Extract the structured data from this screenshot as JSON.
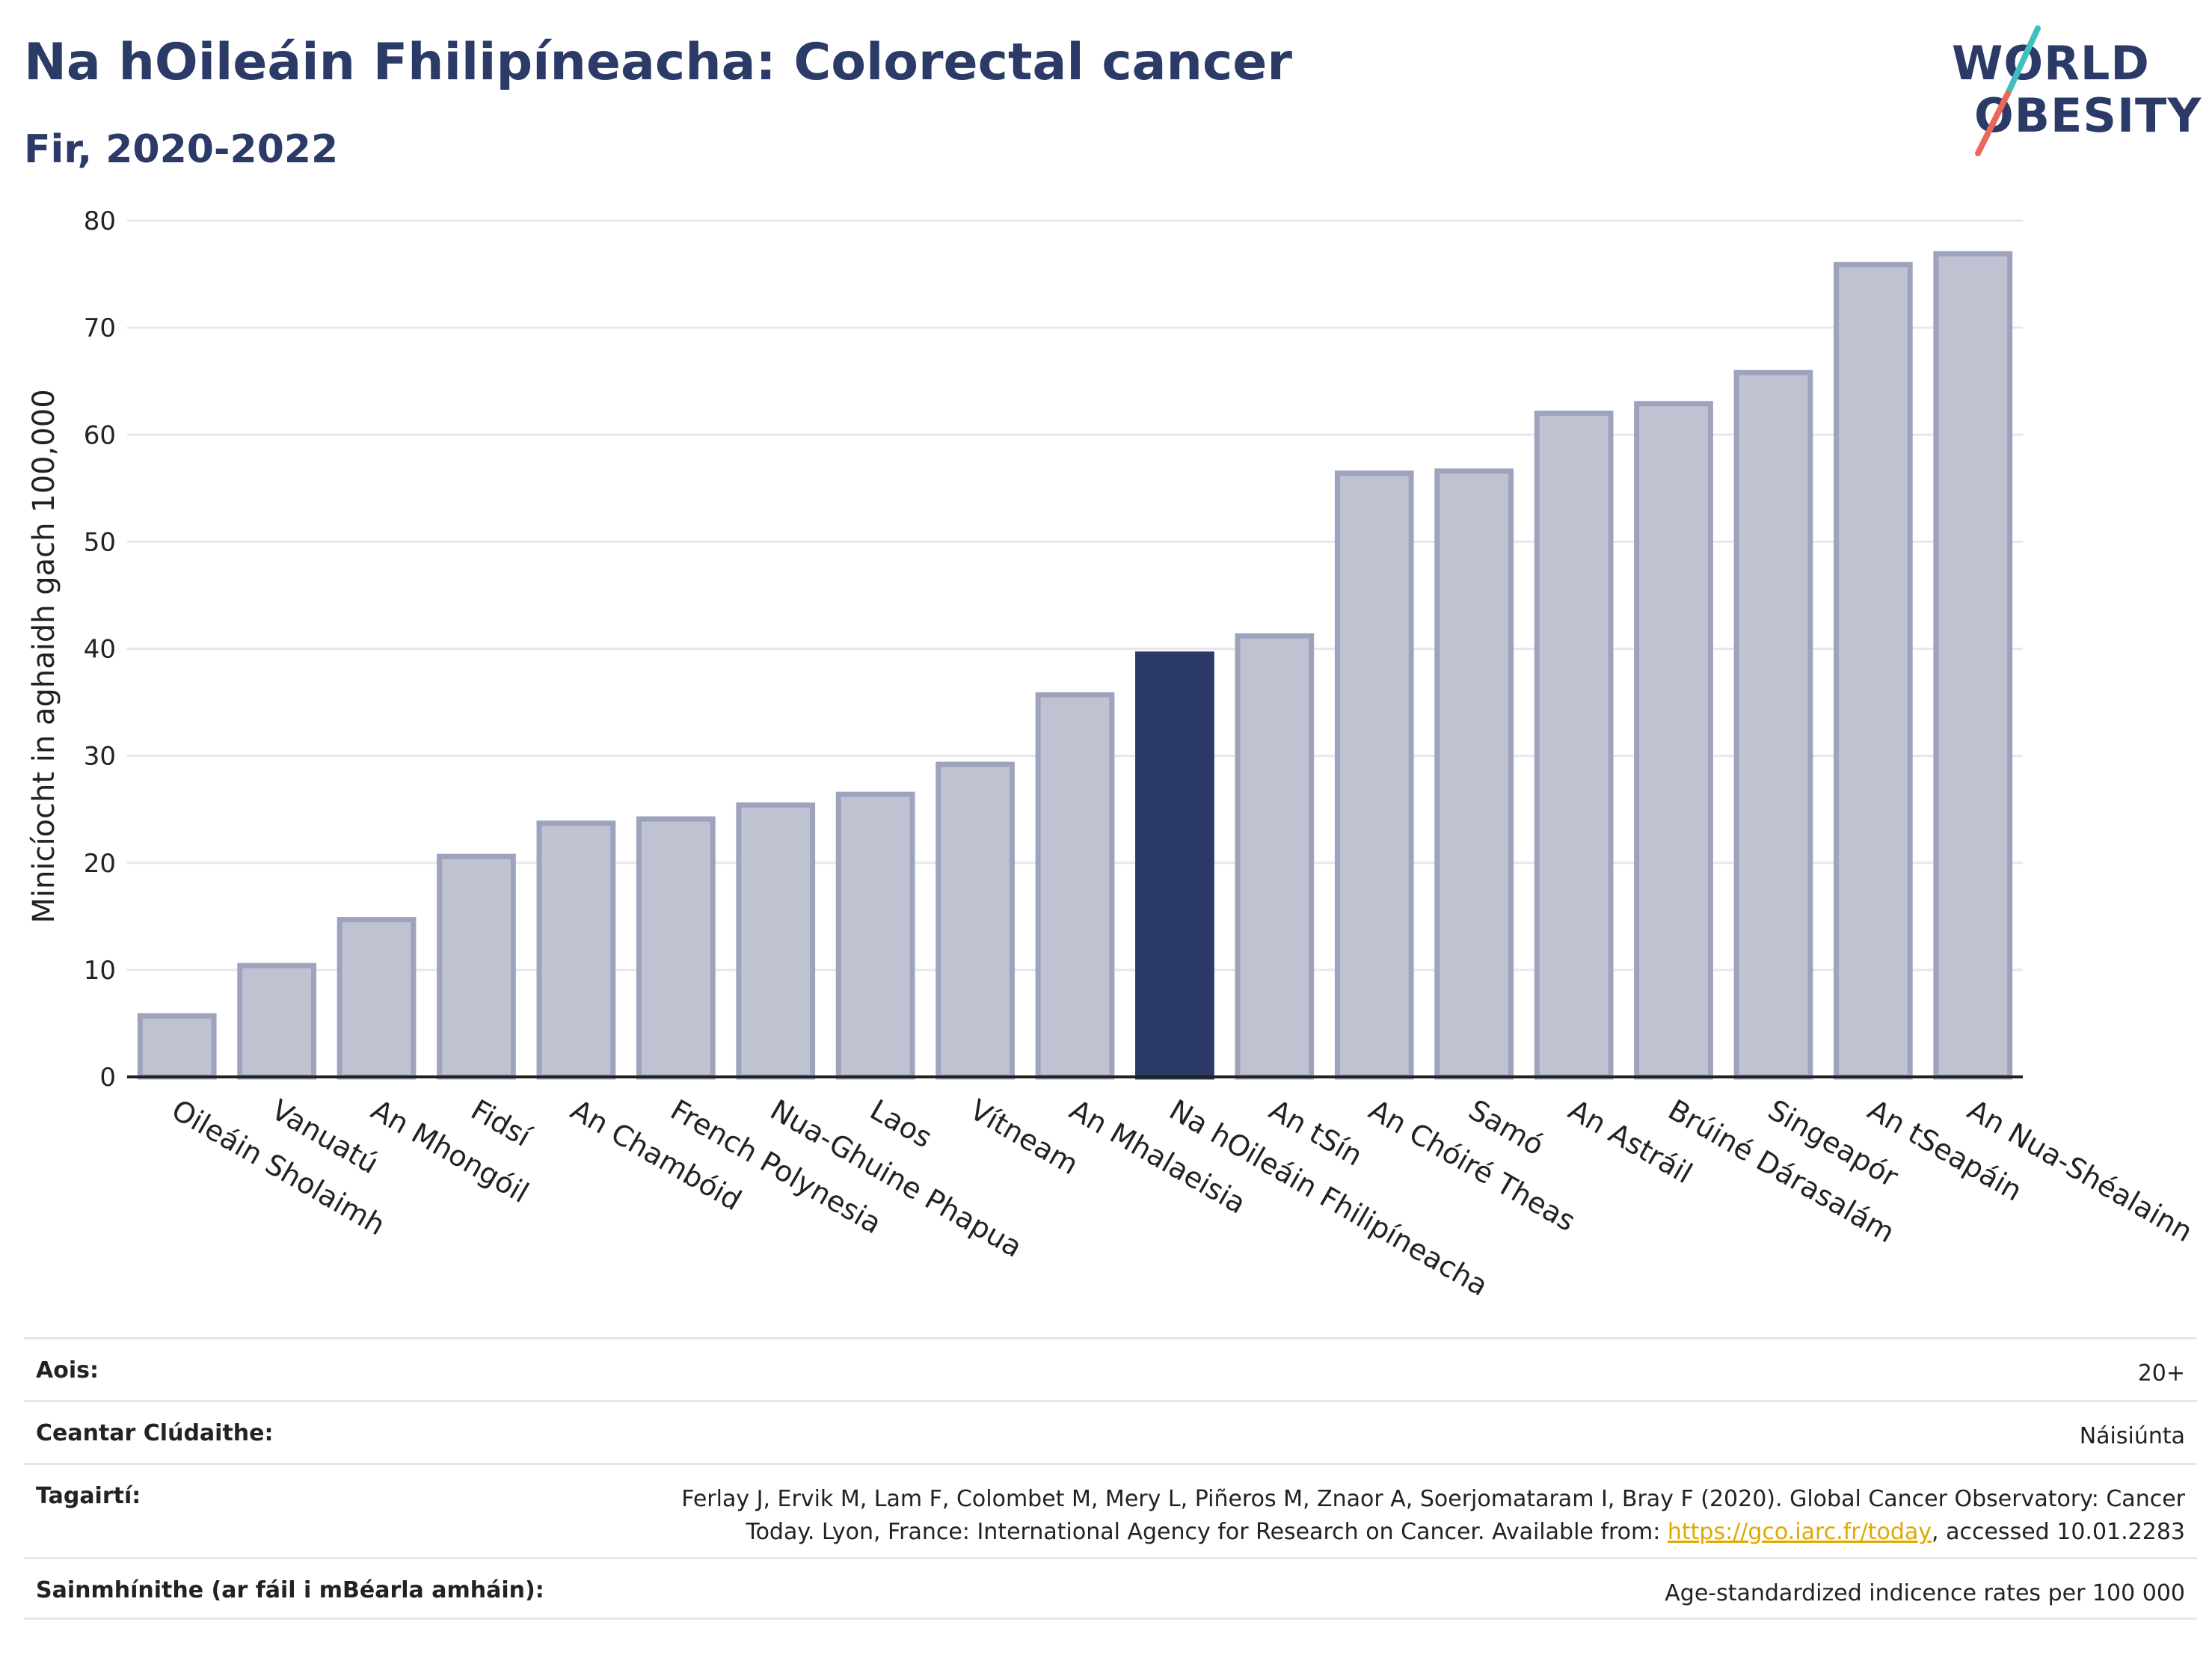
{
  "header": {
    "title": "Na hOileáin Fhilipíneacha: Colorectal cancer",
    "subtitle": "Fir, 2020-2022"
  },
  "logo": {
    "line1": "WORLD",
    "line2": "OBESITY",
    "slash_colors": [
      "#3fbfbf",
      "#e8685a"
    ]
  },
  "colors": {
    "highlight": "#2b3a67",
    "bar_fill": "#bfc3d1",
    "bar_stroke": "#9ea3bd",
    "grid": "#e6e8ee",
    "axis": "#222222",
    "link": "#e0a800"
  },
  "chart_data": {
    "type": "bar",
    "ylabel": "Minicíocht in aghaidh gach 100,000",
    "ylim": [
      0,
      80
    ],
    "yticks": [
      0,
      10,
      20,
      30,
      40,
      50,
      60,
      70,
      80
    ],
    "highlight_category": "Na hOileáin Fhilipíneacha",
    "grid": true,
    "categories": [
      "Oileáin Sholaimh",
      "Vanuatú",
      "An Mhongóil",
      "Fidsí",
      "An Chambóid",
      "French Polynesia",
      "Nua-Ghuine Phapua",
      "Laos",
      "Vítneam",
      "An Mhalaeisia",
      "Na hOileáin Fhilipíneacha",
      "An tSín",
      "An Chóiré Theas",
      "Samó",
      "An Astráil",
      "Brúiné Dárasalám",
      "Singeapór",
      "An tSeapáin",
      "An Nua-Shéalainn"
    ],
    "values": [
      5.7,
      10.4,
      14.7,
      20.6,
      23.7,
      24.1,
      25.4,
      26.4,
      29.2,
      35.7,
      39.5,
      41.2,
      56.4,
      56.6,
      62.0,
      62.9,
      65.8,
      75.9,
      76.9
    ]
  },
  "footer": {
    "rows": [
      {
        "label": "Aois:",
        "value": "20+"
      },
      {
        "label": "Ceantar Clúdaithe:",
        "value": "Náisiúnta"
      },
      {
        "label": "Tagairtí:",
        "value_line1": "Ferlay J, Ervik M, Lam F, Colombet M, Mery L, Piñeros M, Znaor A, Soerjomataram I, Bray F (2020). Global Cancer Observatory: Cancer",
        "value_line2_pre": "Today. Lyon, France: International Agency for Research on Cancer. Available from: ",
        "value_link": "https://gco.iarc.fr/today",
        "value_line2_post": ", accessed 10.01.2283"
      },
      {
        "label": "Sainmhínithe (ar fáil i mBéarla amháin):",
        "value": "Age-standardized indicence rates per 100 000"
      }
    ]
  }
}
